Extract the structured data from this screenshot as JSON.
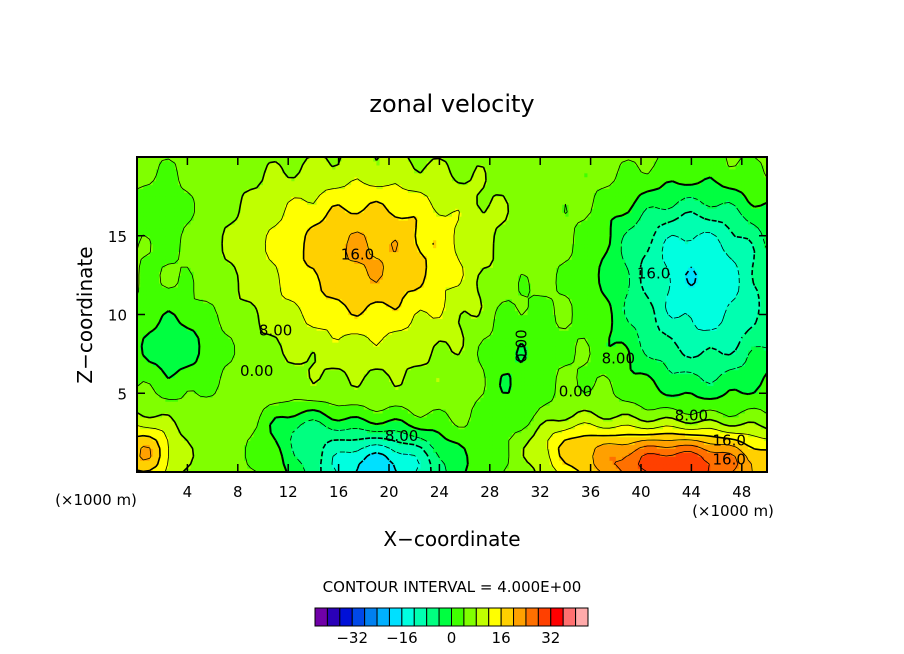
{
  "chart_data": {
    "type": "heatmap",
    "subtype": "filled-contour",
    "title": "zonal velocity",
    "xlabel": "X−coordinate",
    "ylabel": "Z−coordinate",
    "x_unit_left": "(×1000 m)",
    "x_unit_right": "(×1000 m)",
    "xlim": [
      0,
      50
    ],
    "ylim": [
      0,
      20
    ],
    "xticks": [
      4,
      8,
      12,
      16,
      20,
      24,
      28,
      32,
      36,
      40,
      44,
      48
    ],
    "yticks": [
      5,
      10,
      15
    ],
    "contour_interval_text": "CONTOUR INTERVAL =  4.000E+00",
    "contour_interval": 4.0,
    "contour_labels": [
      {
        "text": "16.0",
        "x": 17.5,
        "z": 13.8
      },
      {
        "text": "8.00",
        "x": 11.0,
        "z": 9.0
      },
      {
        "text": "0.00",
        "x": 9.5,
        "z": 6.4
      },
      {
        "text": "0.00",
        "x": 30.5,
        "z": 8.0,
        "rotate": -90
      },
      {
        "text": "0.00",
        "x": 34.8,
        "z": 5.1
      },
      {
        "text": "8.00",
        "x": 21.0,
        "z": 2.3
      },
      {
        "text": "16.0",
        "x": 41.0,
        "z": 12.6
      },
      {
        "text": "8.00",
        "x": 38.2,
        "z": 7.2
      },
      {
        "text": "8.00",
        "x": 44.0,
        "z": 3.6
      },
      {
        "text": "16.0",
        "x": 47.0,
        "z": 2.0
      },
      {
        "text": "16.0",
        "x": 47.0,
        "z": 0.8
      }
    ],
    "colorbar": {
      "levels": [
        -40,
        -36,
        -32,
        -28,
        -24,
        -20,
        -16,
        -12,
        -8,
        -4,
        0,
        4,
        8,
        12,
        16,
        20,
        24,
        28,
        32,
        36,
        40
      ],
      "colors": [
        "#7000a8",
        "#2a00b8",
        "#0010d8",
        "#0048e8",
        "#0080f0",
        "#00b0ff",
        "#00e0ff",
        "#00ffe0",
        "#00ffb0",
        "#00ff80",
        "#00ff40",
        "#40ff00",
        "#80ff00",
        "#c0ff00",
        "#ffff00",
        "#ffd000",
        "#ffa000",
        "#ff7000",
        "#ff4000",
        "#ff0000",
        "#ff7070",
        "#ffaaaa"
      ],
      "tick_values": [
        -32,
        -16,
        0,
        16,
        32
      ],
      "tick_labels": [
        "−32",
        "−16",
        "0",
        "16",
        "32"
      ]
    },
    "grid": false,
    "legend": "colorbar-bottom"
  }
}
